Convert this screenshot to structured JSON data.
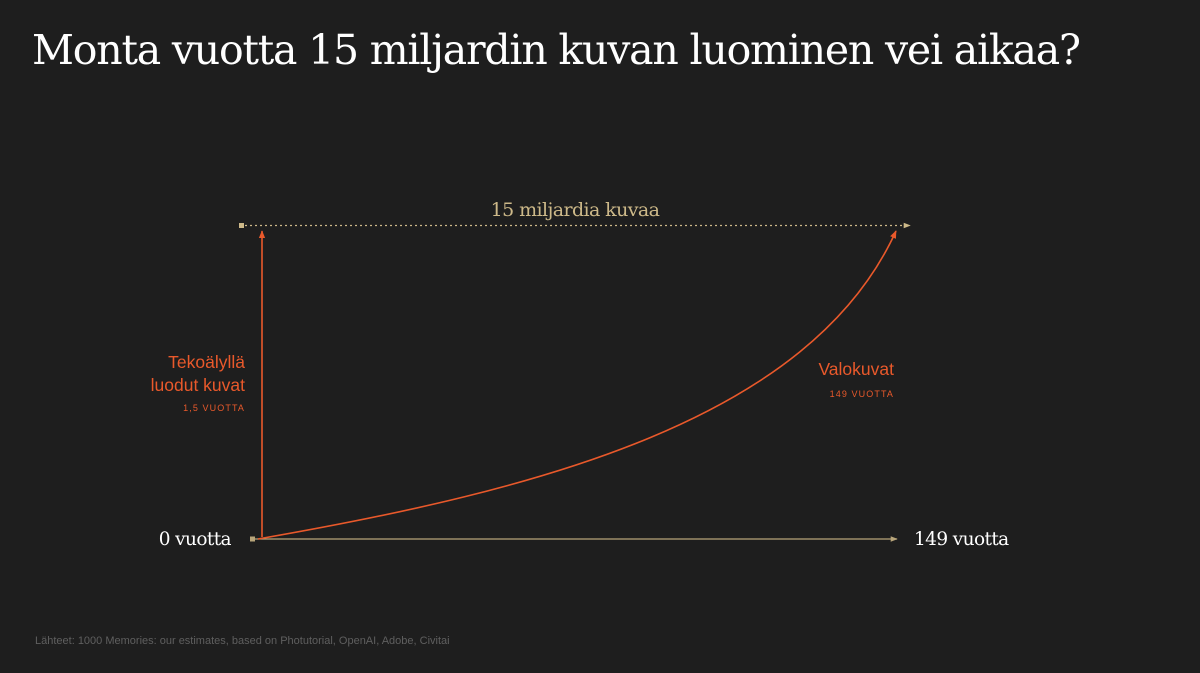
{
  "title": "Monta vuotta 15 miljardin kuvan luominen vei aikaa?",
  "source": "Lähteet: 1000 Memories: our estimates, based on Photutorial, OpenAI, Adobe, Civitai",
  "colors": {
    "background": "#1e1e1e",
    "accent": "#e9592b",
    "axis": "#b8a57a",
    "top_line": "#cdb989",
    "text": "#ffffff"
  },
  "chart_data": {
    "type": "line",
    "title": "Monta vuotta 15 miljardin kuvan luominen vei aikaa?",
    "xlabel_start": "0 vuotta",
    "xlabel_end": "149 vuotta",
    "top_label": "15 miljardia kuvaa",
    "x_unit": "vuotta",
    "y_unit": "miljardia kuvaa",
    "xlim": [
      0,
      149
    ],
    "ylim": [
      0,
      15
    ],
    "grid": false,
    "series": [
      {
        "name": "Tekoälyllä luodut kuvat",
        "name_lines": [
          "Tekoälyllä",
          "luodut kuvat"
        ],
        "duration_label": "1,5 VUOTTA",
        "duration_years": 1.5,
        "color": "#e9592b",
        "x": [
          0,
          1.5
        ],
        "y": [
          0,
          15
        ]
      },
      {
        "name": "Valokuvat",
        "name_lines": [
          "Valokuvat"
        ],
        "duration_label": "149 VUOTTA",
        "duration_years": 149,
        "color": "#e9592b",
        "x": [
          0,
          20,
          40,
          60,
          80,
          100,
          120,
          140,
          149
        ],
        "y": [
          0,
          0.9,
          2.0,
          3.3,
          4.9,
          6.9,
          9.4,
          12.9,
          15
        ]
      }
    ]
  }
}
